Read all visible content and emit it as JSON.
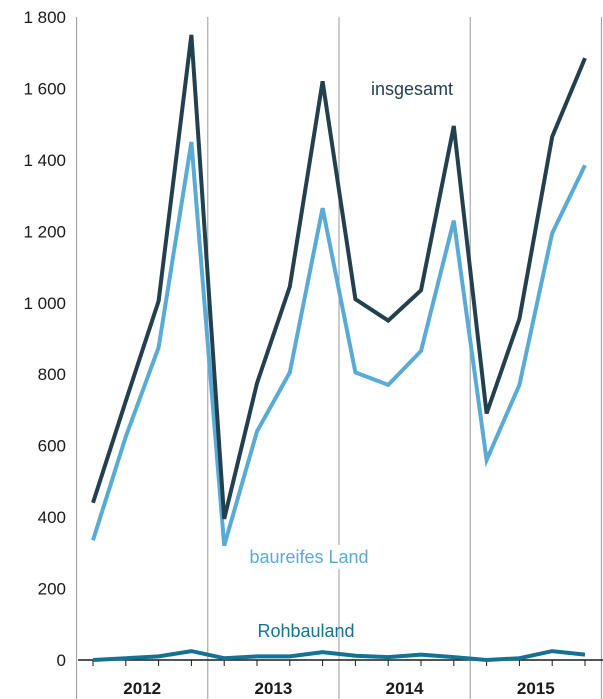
{
  "chart_data": {
    "type": "line",
    "quarters": [
      "2012 Q1",
      "2012 Q2",
      "2012 Q3",
      "2012 Q4",
      "2013 Q1",
      "2013 Q2",
      "2013 Q3",
      "2013 Q4",
      "2014 Q1",
      "2014 Q2",
      "2014 Q3",
      "2014 Q4",
      "2015 Q1",
      "2015 Q2",
      "2015 Q3",
      "2015 Q4"
    ],
    "year_labels": [
      "2012",
      "2013",
      "2014",
      "2015"
    ],
    "y_ticks": [
      0,
      200,
      400,
      600,
      800,
      1000,
      1200,
      1400,
      1600,
      1800
    ],
    "y_tick_labels": [
      "0",
      "200",
      "400",
      "600",
      "800",
      "1 000",
      "1 200",
      "1 400",
      "1 600",
      "1 800"
    ],
    "ylim": [
      0,
      1800
    ],
    "grid": "vertical year separators",
    "series": [
      {
        "name": "insgesamt",
        "color": "#23404e",
        "values": [
          440,
          725,
          1005,
          1750,
          395,
          775,
          1045,
          1620,
          1010,
          950,
          1035,
          1495,
          690,
          955,
          1465,
          1685
        ]
      },
      {
        "name": "baureifes Land",
        "color": "#5aaad6",
        "values": [
          335,
          625,
          875,
          1450,
          320,
          640,
          805,
          1265,
          805,
          770,
          865,
          1230,
          560,
          770,
          1195,
          1385
        ]
      },
      {
        "name": "Rohbauland",
        "color": "#147394",
        "values": [
          0,
          5,
          10,
          25,
          5,
          10,
          10,
          22,
          12,
          8,
          15,
          8,
          0,
          5,
          25,
          15
        ]
      }
    ]
  }
}
